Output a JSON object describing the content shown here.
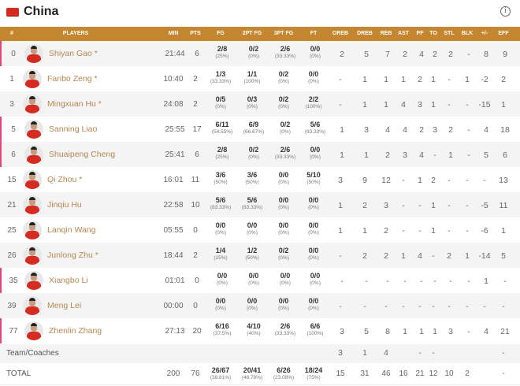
{
  "team": {
    "name": "China",
    "flag_icon": "china-flag",
    "info_icon": "info-icon"
  },
  "columns": [
    "#",
    "PLAYERS",
    "MIN",
    "PTS",
    "FG",
    "2PT FG",
    "3PT FG",
    "FT",
    "OREB",
    "DREB",
    "REB",
    "AST",
    "PF",
    "TO",
    "STL",
    "BLK",
    "+/-",
    "EFF"
  ],
  "colors": {
    "header": "#c4862f",
    "name": "#b8874f",
    "mark": "#e0457b"
  },
  "players": [
    {
      "no": "0",
      "name": "Shiyan Gao *",
      "min": "21:44",
      "pts": "6",
      "fg": [
        "2/8",
        "(25%)"
      ],
      "p2": [
        "0/2",
        "(0%)"
      ],
      "p3": [
        "2/6",
        "(33.33%)"
      ],
      "ft": [
        "0/0",
        "(0%)"
      ],
      "stats": [
        "2",
        "5",
        "7",
        "2",
        "4",
        "2",
        "2",
        "-",
        "8",
        "9"
      ],
      "mark": true
    },
    {
      "no": "1",
      "name": "Fanbo Zeng *",
      "min": "10:40",
      "pts": "2",
      "fg": [
        "1/3",
        "(33.33%)"
      ],
      "p2": [
        "1/1",
        "(100%)"
      ],
      "p3": [
        "0/2",
        "(0%)"
      ],
      "ft": [
        "0/0",
        "(0%)"
      ],
      "stats": [
        "-",
        "1",
        "1",
        "1",
        "2",
        "1",
        "-",
        "1",
        "-2",
        "2"
      ],
      "mark": false
    },
    {
      "no": "3",
      "name": "Mingxuan Hu *",
      "min": "24:08",
      "pts": "2",
      "fg": [
        "0/5",
        "(0%)"
      ],
      "p2": [
        "0/3",
        "(0%)"
      ],
      "p3": [
        "0/2",
        "(0%)"
      ],
      "ft": [
        "2/2",
        "(100%)"
      ],
      "stats": [
        "-",
        "1",
        "1",
        "4",
        "3",
        "1",
        "-",
        "-",
        "-15",
        "1"
      ],
      "mark": false
    },
    {
      "no": "5",
      "name": "Sanning Liao",
      "min": "25:55",
      "pts": "17",
      "fg": [
        "6/11",
        "(54.55%)"
      ],
      "p2": [
        "6/9",
        "(66.67%)"
      ],
      "p3": [
        "0/2",
        "(0%)"
      ],
      "ft": [
        "5/6",
        "(83.33%)"
      ],
      "stats": [
        "1",
        "3",
        "4",
        "4",
        "2",
        "3",
        "2",
        "-",
        "4",
        "18"
      ],
      "mark": true
    },
    {
      "no": "6",
      "name": "Shuaipeng Cheng",
      "min": "25:41",
      "pts": "6",
      "fg": [
        "2/8",
        "(25%)"
      ],
      "p2": [
        "0/2",
        "(0%)"
      ],
      "p3": [
        "2/6",
        "(33.33%)"
      ],
      "ft": [
        "0/0",
        "(0%)"
      ],
      "stats": [
        "1",
        "1",
        "2",
        "3",
        "4",
        "-",
        "1",
        "-",
        "5",
        "6"
      ],
      "mark": true
    },
    {
      "no": "15",
      "name": "Qi Zhou *",
      "min": "16:01",
      "pts": "11",
      "fg": [
        "3/6",
        "(50%)"
      ],
      "p2": [
        "3/6",
        "(50%)"
      ],
      "p3": [
        "0/0",
        "(0%)"
      ],
      "ft": [
        "5/10",
        "(50%)"
      ],
      "stats": [
        "3",
        "9",
        "12",
        "-",
        "1",
        "2",
        "-",
        "-",
        "-",
        "13"
      ],
      "mark": false
    },
    {
      "no": "21",
      "name": "Jinqiu Hu",
      "min": "22:58",
      "pts": "10",
      "fg": [
        "5/6",
        "(83.33%)"
      ],
      "p2": [
        "5/6",
        "(83.33%)"
      ],
      "p3": [
        "0/0",
        "(0%)"
      ],
      "ft": [
        "0/0",
        "(0%)"
      ],
      "stats": [
        "1",
        "2",
        "3",
        "-",
        "-",
        "1",
        "-",
        "-",
        "-5",
        "11"
      ],
      "mark": false
    },
    {
      "no": "25",
      "name": "Lanqin Wang",
      "min": "05:55",
      "pts": "0",
      "fg": [
        "0/0",
        "(0%)"
      ],
      "p2": [
        "0/0",
        "(0%)"
      ],
      "p3": [
        "0/0",
        "(0%)"
      ],
      "ft": [
        "0/0",
        "(0%)"
      ],
      "stats": [
        "1",
        "1",
        "2",
        "-",
        "-",
        "1",
        "-",
        "-",
        "-6",
        "1"
      ],
      "mark": false
    },
    {
      "no": "26",
      "name": "Junlong Zhu *",
      "min": "18:44",
      "pts": "2",
      "fg": [
        "1/4",
        "(25%)"
      ],
      "p2": [
        "1/2",
        "(50%)"
      ],
      "p3": [
        "0/2",
        "(0%)"
      ],
      "ft": [
        "0/0",
        "(0%)"
      ],
      "stats": [
        "-",
        "2",
        "2",
        "1",
        "4",
        "-",
        "2",
        "1",
        "-14",
        "5"
      ],
      "mark": false
    },
    {
      "no": "35",
      "name": "Xiangbo Li",
      "min": "01:01",
      "pts": "0",
      "fg": [
        "0/0",
        "(0%)"
      ],
      "p2": [
        "0/0",
        "(0%)"
      ],
      "p3": [
        "0/0",
        "(0%)"
      ],
      "ft": [
        "0/0",
        "(0%)"
      ],
      "stats": [
        "-",
        "-",
        "-",
        "-",
        "-",
        "-",
        "-",
        "-",
        "1",
        "-"
      ],
      "mark": true
    },
    {
      "no": "39",
      "name": "Meng Lei",
      "min": "00:00",
      "pts": "0",
      "fg": [
        "0/0",
        "(0%)"
      ],
      "p2": [
        "0/0",
        "(0%)"
      ],
      "p3": [
        "0/0",
        "(0%)"
      ],
      "ft": [
        "0/0",
        "(0%)"
      ],
      "stats": [
        "-",
        "-",
        "-",
        "-",
        "-",
        "-",
        "-",
        "-",
        "-",
        "-"
      ],
      "mark": false
    },
    {
      "no": "77",
      "name": "Zhenlin Zhang",
      "min": "27:13",
      "pts": "20",
      "fg": [
        "6/16",
        "(37.5%)"
      ],
      "p2": [
        "4/10",
        "(40%)"
      ],
      "p3": [
        "2/6",
        "(33.33%)"
      ],
      "ft": [
        "6/6",
        "(100%)"
      ],
      "stats": [
        "3",
        "5",
        "8",
        "1",
        "1",
        "1",
        "3",
        "-",
        "4",
        "21"
      ],
      "mark": true
    }
  ],
  "team_row": {
    "label": "Team/Coaches",
    "stats": [
      "3",
      "1",
      "4",
      "",
      "-",
      "-",
      "",
      "",
      "",
      "-"
    ]
  },
  "total_row": {
    "label": "TOTAL",
    "min": "200",
    "pts": "76",
    "fg": [
      "26/67",
      "(38.81%)"
    ],
    "p2": [
      "20/41",
      "(48.78%)"
    ],
    "p3": [
      "6/26",
      "(23.08%)"
    ],
    "ft": [
      "18/24",
      "(75%)"
    ],
    "stats": [
      "15",
      "31",
      "46",
      "16",
      "21",
      "12",
      "10",
      "2",
      "",
      "-"
    ]
  }
}
